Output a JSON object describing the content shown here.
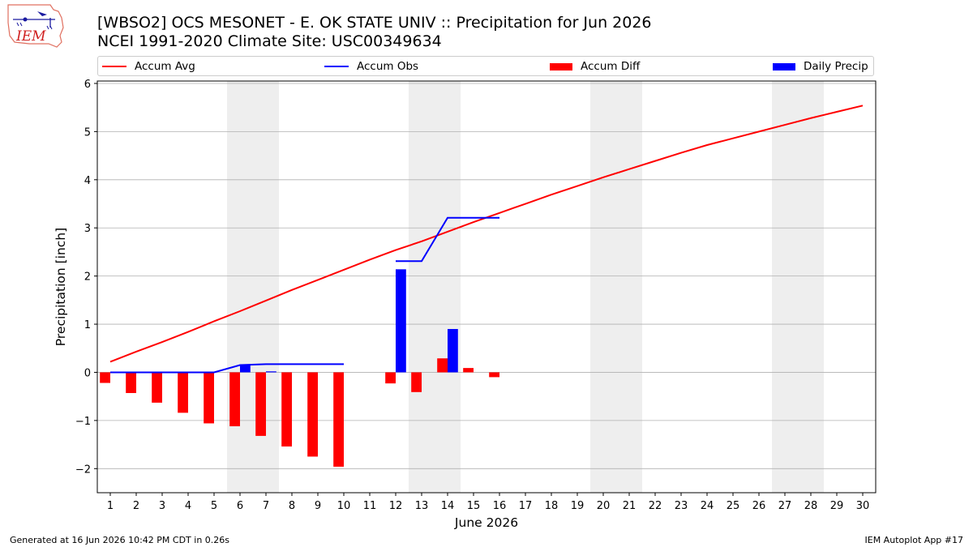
{
  "header": {
    "logo_text": "IEM",
    "title_line1": "[WBSO2] OCS MESONET - E. OK STATE UNIV :: Precipitation for Jun 2026",
    "title_line2": "NCEI 1991-2020 Climate Site: USC00349634"
  },
  "legend": {
    "accum_avg": "Accum Avg",
    "accum_obs": "Accum Obs",
    "accum_diff": "Accum Diff",
    "daily_precip": "Daily Precip"
  },
  "colors": {
    "accum_avg": "#ff0000",
    "accum_obs": "#0000ff",
    "accum_diff": "#ff0000",
    "daily_precip": "#0000ff",
    "weekend_shade": "#eeeeee",
    "grid": "#b0b0b0"
  },
  "chart_data": {
    "type": "bar",
    "xlabel": "June 2026",
    "ylabel": "Precipitation [inch]",
    "ylim": [
      -2.5,
      6.05
    ],
    "xlim": [
      0.5,
      30.5
    ],
    "grid": "horizontal",
    "legend_placement": "top",
    "days": [
      1,
      2,
      3,
      4,
      5,
      6,
      7,
      8,
      9,
      10,
      11,
      12,
      13,
      14,
      15,
      16,
      17,
      18,
      19,
      20,
      21,
      22,
      23,
      24,
      25,
      26,
      27,
      28,
      29,
      30
    ],
    "y_ticks": [
      -2,
      -1,
      0,
      1,
      2,
      3,
      4,
      5,
      6
    ],
    "weekends": [
      [
        6,
        7
      ],
      [
        13,
        14
      ],
      [
        20,
        21
      ],
      [
        27,
        28
      ]
    ],
    "series": [
      {
        "name": "Accum Avg",
        "kind": "line",
        "x": [
          1,
          2,
          3,
          4,
          5,
          6,
          7,
          8,
          9,
          10,
          11,
          12,
          13,
          14,
          15,
          16,
          17,
          18,
          19,
          20,
          21,
          22,
          23,
          24,
          25,
          26,
          27,
          28,
          29,
          30
        ],
        "values": [
          0.22,
          0.43,
          0.63,
          0.84,
          1.06,
          1.27,
          1.49,
          1.71,
          1.92,
          2.13,
          2.34,
          2.54,
          2.72,
          2.92,
          3.12,
          3.31,
          3.5,
          3.69,
          3.87,
          4.05,
          4.22,
          4.39,
          4.56,
          4.72,
          4.86,
          5.0,
          5.14,
          5.28,
          5.41,
          5.54
        ]
      },
      {
        "name": "Accum Obs",
        "kind": "line",
        "segments": [
          {
            "x": [
              1,
              2,
              3,
              4,
              5,
              6,
              7,
              8,
              9,
              10
            ],
            "values": [
              0,
              0,
              0,
              0,
              0,
              0.15,
              0.17,
              0.17,
              0.17,
              0.17
            ]
          },
          {
            "x": [
              12,
              13,
              14,
              15,
              16
            ],
            "values": [
              2.31,
              2.31,
              3.21,
              3.21,
              3.21
            ]
          }
        ]
      },
      {
        "name": "Accum Diff",
        "kind": "bar",
        "x": [
          1,
          2,
          3,
          4,
          5,
          6,
          7,
          8,
          9,
          10,
          12,
          13,
          14,
          15,
          16
        ],
        "values": [
          -0.22,
          -0.43,
          -0.63,
          -0.84,
          -1.06,
          -1.12,
          -1.32,
          -1.54,
          -1.75,
          -1.96,
          -0.23,
          -0.41,
          0.29,
          0.09,
          -0.1
        ]
      },
      {
        "name": "Daily Precip",
        "kind": "bar",
        "x": [
          6,
          7,
          12,
          14
        ],
        "values": [
          0.15,
          0.02,
          2.14,
          0.9
        ]
      }
    ]
  },
  "footer": {
    "left": "Generated at 16 Jun 2026 10:42 PM CDT in 0.26s",
    "right": "IEM Autoplot App #17"
  }
}
